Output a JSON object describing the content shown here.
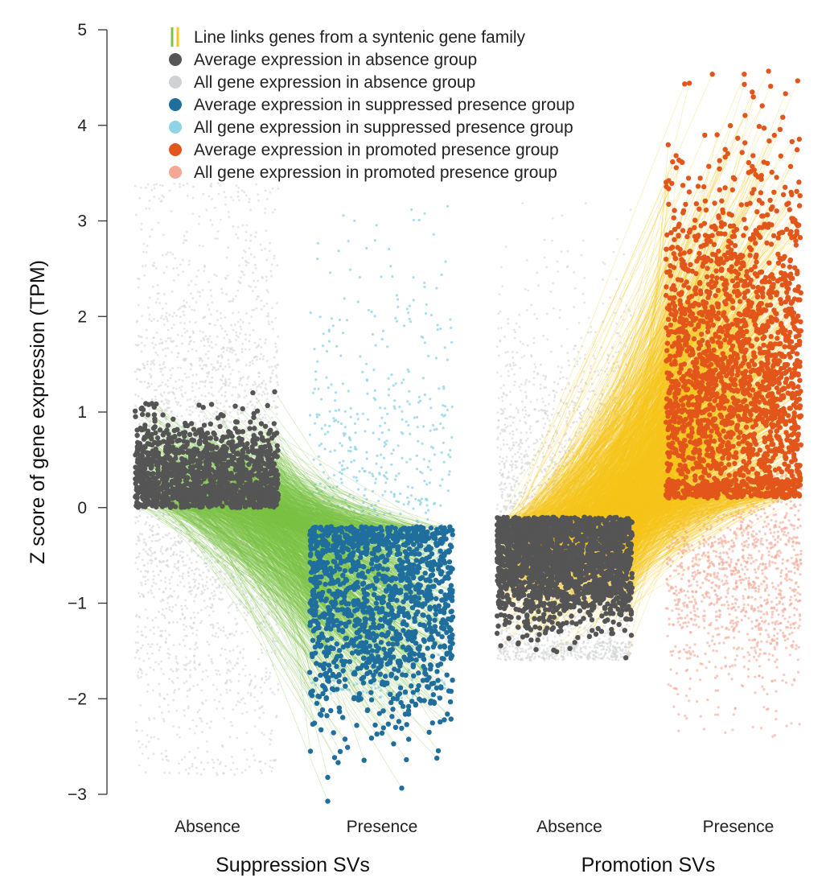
{
  "chart_data": {
    "type": "scatter",
    "title": "",
    "ylabel": "Z score of gene expression (TPM)",
    "ylim": [
      -3,
      5
    ],
    "yticks": [
      5,
      4,
      3,
      2,
      1,
      0,
      -1,
      -2,
      -3
    ],
    "ytick_labels": [
      "5",
      "4",
      "3",
      "2",
      "1",
      "0",
      "−1",
      "−2",
      "−3"
    ],
    "groups": [
      {
        "name": "Suppression SVs",
        "categories": [
          "Absence",
          "Presence"
        ],
        "series": [
          {
            "name": "All gene expression in absence group",
            "category": "Absence",
            "color": "#d0d1d3",
            "y_range": [
              -2.8,
              3.4
            ],
            "center": 0.2
          },
          {
            "name": "Average expression in absence group",
            "category": "Absence",
            "color": "#555555",
            "y_range": [
              0.0,
              1.3
            ],
            "center": 0.3
          },
          {
            "name": "All gene expression in suppressed presence group",
            "category": "Presence",
            "color": "#8fd3e6",
            "y_range": [
              -2.0,
              3.2
            ],
            "center": 0.1
          },
          {
            "name": "Average expression in suppressed presence group",
            "category": "Presence",
            "color": "#1f6e9e",
            "y_range": [
              -3.1,
              -0.2
            ],
            "center": -0.9
          }
        ],
        "link_color": "#7cc444"
      },
      {
        "name": "Promotion SVs",
        "categories": [
          "Absence",
          "Presence"
        ],
        "series": [
          {
            "name": "All gene expression in absence group",
            "category": "Absence",
            "color": "#d0d1d3",
            "y_range": [
              -1.6,
              3.2
            ],
            "center": -0.3
          },
          {
            "name": "Average expression in absence group",
            "category": "Absence",
            "color": "#555555",
            "y_range": [
              -1.6,
              -0.1
            ],
            "center": -0.5
          },
          {
            "name": "All gene expression in promoted presence group",
            "category": "Presence",
            "color": "#f4a795",
            "y_range": [
              -2.4,
              0.4
            ],
            "center": -0.6
          },
          {
            "name": "Average expression in promoted presence group",
            "category": "Presence",
            "color": "#e3561b",
            "y_range": [
              0.1,
              4.6
            ],
            "center": 1.3
          }
        ],
        "link_color": "#f6c51a"
      }
    ],
    "legend": [
      {
        "label": "Line links genes from a syntenic gene family",
        "kind": "line",
        "colors": [
          "#7cc444",
          "#f6c51a"
        ]
      },
      {
        "label": "Average expression in absence group",
        "kind": "dot",
        "color": "#555555"
      },
      {
        "label": "All gene expression in absence group",
        "kind": "dot",
        "color": "#d0d1d3"
      },
      {
        "label": "Average expression in suppressed presence group",
        "kind": "dot",
        "color": "#1f6e9e"
      },
      {
        "label": "All gene expression in suppressed presence group",
        "kind": "dot",
        "color": "#8fd3e6"
      },
      {
        "label": "Average expression in promoted presence group",
        "kind": "dot",
        "color": "#e3561b"
      },
      {
        "label": "All gene expression in promoted presence group",
        "kind": "dot",
        "color": "#f4a795"
      }
    ],
    "legend_position": "top-left"
  }
}
